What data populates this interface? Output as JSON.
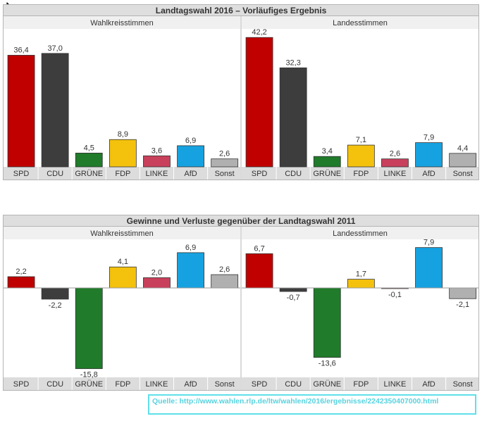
{
  "colors": {
    "SPD": "#c00000",
    "CDU": "#3d3d3d",
    "GRÜNE": "#207b2a",
    "FDP": "#f4c20d",
    "LINKE": "#c8405b",
    "AfD": "#16a2e0",
    "Sonst": "#b0b0b0",
    "panel_title_bg": "#dedede",
    "subheader_bg": "#f0f0f0",
    "category_bar_bg": "#dcdcdc",
    "source_color": "#56d3df"
  },
  "icons": {
    "cursor": "mouse-pointer-icon"
  },
  "chart_data": [
    {
      "type": "bar",
      "title": "Landtagswahl 2016 – Vorläufiges Ergebnis",
      "ylim": [
        0,
        45
      ],
      "panels": [
        {
          "subtitle": "Wahlkreisstimmen",
          "categories": [
            "SPD",
            "CDU",
            "GRÜNE",
            "FDP",
            "LINKE",
            "AfD",
            "Sonst"
          ],
          "values": [
            36.4,
            37.0,
            4.5,
            8.9,
            3.6,
            6.9,
            2.6
          ],
          "labels": [
            "36,4",
            "37,0",
            "4,5",
            "8,9",
            "3,6",
            "6,9",
            "2,6"
          ]
        },
        {
          "subtitle": "Landesstimmen",
          "categories": [
            "SPD",
            "CDU",
            "GRÜNE",
            "FDP",
            "LINKE",
            "AfD",
            "Sonst"
          ],
          "values": [
            42.2,
            32.3,
            3.4,
            7.1,
            2.6,
            7.9,
            4.4
          ],
          "labels": [
            "42,2",
            "32,3",
            "3,4",
            "7,1",
            "2,6",
            "7,9",
            "4,4"
          ]
        }
      ]
    },
    {
      "type": "bar",
      "title": "Gewinne und Verluste gegenüber der Landtagswahl 2011",
      "ylim": [
        -17.5,
        9.5
      ],
      "panels": [
        {
          "subtitle": "Wahlkreisstimmen",
          "categories": [
            "SPD",
            "CDU",
            "GRÜNE",
            "FDP",
            "LINKE",
            "AfD",
            "Sonst"
          ],
          "values": [
            2.2,
            -2.2,
            -15.8,
            4.1,
            2.0,
            6.9,
            2.6
          ],
          "labels": [
            "2,2",
            "-2,2",
            "-15,8",
            "4,1",
            "2,0",
            "6,9",
            "2,6"
          ]
        },
        {
          "subtitle": "Landesstimmen",
          "categories": [
            "SPD",
            "CDU",
            "GRÜNE",
            "FDP",
            "LINKE",
            "AfD",
            "Sonst"
          ],
          "values": [
            6.7,
            -0.7,
            -13.6,
            1.7,
            -0.1,
            7.9,
            -2.1
          ],
          "labels": [
            "6,7",
            "-0,7",
            "-13,6",
            "1,7",
            "-0,1",
            "7,9",
            "-2,1"
          ]
        }
      ]
    }
  ],
  "source": "Quelle: http://www.wahlen.rlp.de/ltw/wahlen/2016/ergebnisse/2242350407000.html"
}
